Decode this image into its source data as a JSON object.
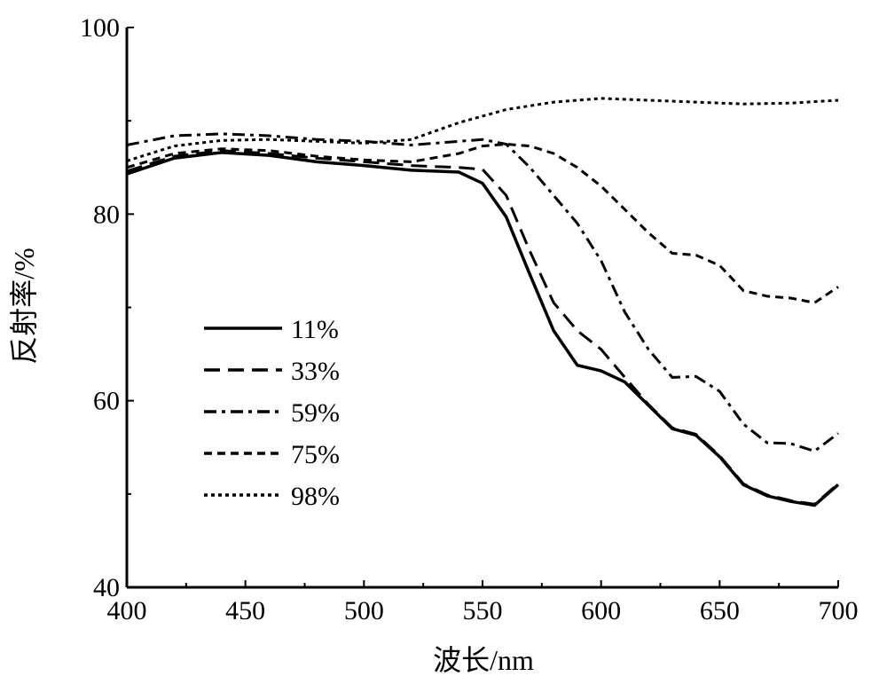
{
  "chart_data": {
    "type": "line",
    "title": "",
    "xlabel": "波长/nm",
    "ylabel": "反射率/%",
    "xlim": [
      400,
      700
    ],
    "ylim": [
      40,
      100
    ],
    "xticks": [
      400,
      450,
      500,
      550,
      600,
      650,
      700
    ],
    "yticks": [
      40,
      60,
      80,
      100
    ],
    "grid": false,
    "legend_position": "center-left",
    "series": [
      {
        "name": "11%",
        "dash": "solid",
        "x": [
          400,
          420,
          440,
          460,
          480,
          500,
          520,
          540,
          550,
          560,
          570,
          580,
          590,
          600,
          610,
          620,
          630,
          640,
          650,
          660,
          670,
          680,
          690,
          700
        ],
        "y": [
          84.3,
          86,
          86.6,
          86.3,
          85.6,
          85.2,
          84.7,
          84.5,
          83.3,
          79.7,
          73.5,
          67.5,
          63.8,
          63.2,
          62,
          59.5,
          57,
          56.3,
          54,
          51,
          49.8,
          49.2,
          48.8,
          51
        ]
      },
      {
        "name": "33%",
        "dash": "dash",
        "x": [
          400,
          420,
          440,
          460,
          480,
          500,
          520,
          540,
          550,
          560,
          570,
          580,
          590,
          600,
          610,
          620,
          630,
          640,
          650,
          660,
          670,
          680,
          690,
          700
        ],
        "y": [
          84.6,
          86.2,
          86.8,
          86.5,
          86,
          85.6,
          85.2,
          85,
          84.8,
          82,
          76,
          70.5,
          67.5,
          65.5,
          62.5,
          59.6,
          57.1,
          56.4,
          54.1,
          51.1,
          49.9,
          49.3,
          48.9,
          51.1
        ]
      },
      {
        "name": "59%",
        "dash": "dashdot",
        "x": [
          400,
          420,
          440,
          460,
          480,
          500,
          520,
          540,
          550,
          560,
          570,
          580,
          590,
          600,
          610,
          620,
          630,
          640,
          650,
          660,
          670,
          680,
          690,
          700
        ],
        "y": [
          87.4,
          88.4,
          88.6,
          88.4,
          88,
          87.8,
          87.4,
          87.8,
          88,
          87.5,
          85,
          82,
          79,
          75,
          69.5,
          65.5,
          62.5,
          62.6,
          61,
          57.5,
          55.5,
          55.4,
          54.6,
          56.5
        ]
      },
      {
        "name": "75%",
        "dash": "shortdash",
        "x": [
          400,
          420,
          440,
          460,
          480,
          500,
          520,
          540,
          550,
          560,
          570,
          580,
          590,
          600,
          610,
          620,
          630,
          640,
          650,
          660,
          670,
          680,
          690,
          700
        ],
        "y": [
          85,
          86.5,
          87,
          86.8,
          86.2,
          85.8,
          85.6,
          86.5,
          87.3,
          87.5,
          87.3,
          86.5,
          85,
          83,
          80.5,
          78,
          75.8,
          75.6,
          74.5,
          71.8,
          71.2,
          71,
          70.5,
          72.2
        ]
      },
      {
        "name": "98%",
        "dash": "dot",
        "x": [
          400,
          420,
          440,
          460,
          480,
          500,
          520,
          540,
          560,
          580,
          600,
          620,
          640,
          660,
          680,
          700
        ],
        "y": [
          85.7,
          87.3,
          87.9,
          88,
          87.8,
          87.6,
          88,
          89.8,
          91.2,
          92,
          92.4,
          92.2,
          92,
          91.8,
          91.9,
          92.2
        ]
      }
    ]
  }
}
